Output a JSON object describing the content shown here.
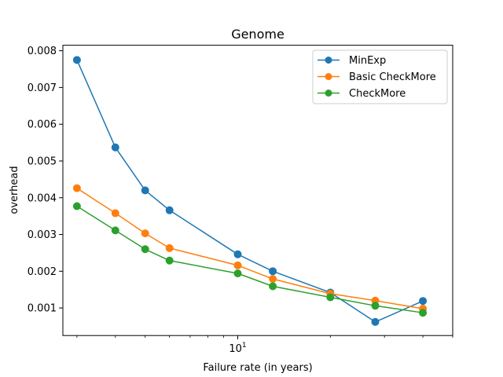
{
  "chart_data": {
    "type": "line",
    "title": "Genome",
    "xlabel": "Failure rate (in years)",
    "ylabel": "overhead",
    "xscale": "log",
    "xlim": [
      2.7,
      50
    ],
    "ylim": [
      0.00025,
      0.00815
    ],
    "x": [
      3,
      4,
      5,
      6,
      10,
      13,
      20,
      28,
      40
    ],
    "x_tick_labels": [
      {
        "value": 10,
        "base": "10",
        "exp": "1"
      }
    ],
    "y_ticks": [
      0.001,
      0.002,
      0.003,
      0.004,
      0.005,
      0.006,
      0.007,
      0.008
    ],
    "y_tick_labels": [
      "0.001",
      "0.002",
      "0.003",
      "0.004",
      "0.005",
      "0.006",
      "0.007",
      "0.008"
    ],
    "legend_position": "top-right",
    "grid": false,
    "series": [
      {
        "name": "MinExp",
        "color": "#1f77b4",
        "values": [
          0.00775,
          0.00537,
          0.0042,
          0.00366,
          0.00246,
          0.002,
          0.00142,
          0.00062,
          0.00119
        ]
      },
      {
        "name": "Basic CheckMore",
        "color": "#ff7f0e",
        "values": [
          0.00426,
          0.00358,
          0.00303,
          0.00263,
          0.00216,
          0.00179,
          0.00139,
          0.0012,
          0.00098
        ]
      },
      {
        "name": "CheckMore",
        "color": "#2ca02c",
        "values": [
          0.00377,
          0.00311,
          0.0026,
          0.00229,
          0.00194,
          0.00159,
          0.00129,
          0.00106,
          0.00087
        ]
      }
    ]
  }
}
